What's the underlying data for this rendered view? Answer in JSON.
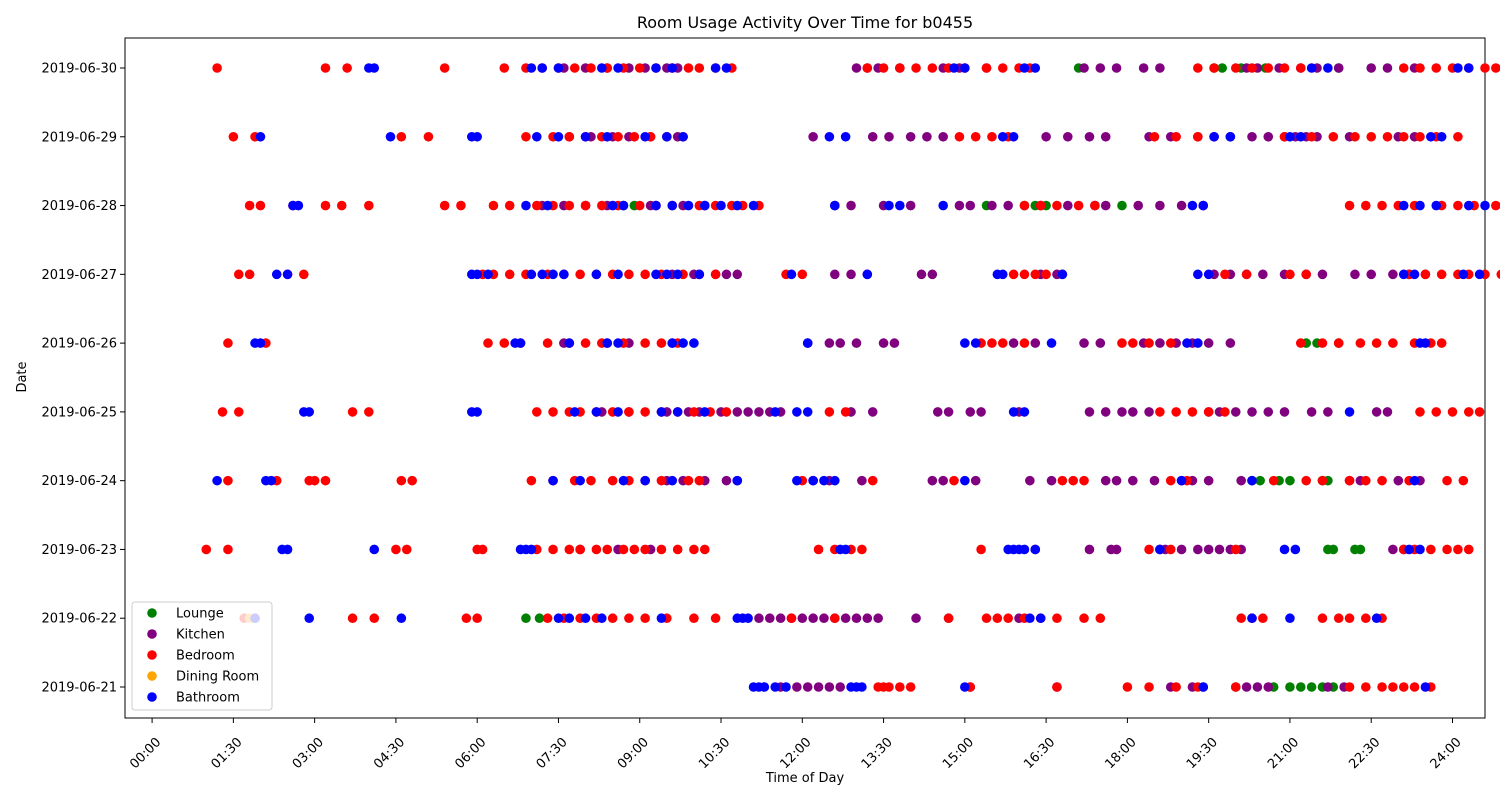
{
  "chart_data": {
    "type": "scatter",
    "title": "Room Usage Activity Over Time for b0455",
    "xlabel": "Time of Day",
    "ylabel": "Date",
    "xlim": [
      -0.5,
      24.6
    ],
    "x_ticks": [
      "00:00",
      "01:30",
      "03:00",
      "04:30",
      "06:00",
      "07:30",
      "09:00",
      "10:30",
      "12:00",
      "13:30",
      "15:00",
      "16:30",
      "18:00",
      "19:30",
      "21:00",
      "22:30",
      "24:00"
    ],
    "y_categories": [
      "2019-06-21",
      "2019-06-22",
      "2019-06-23",
      "2019-06-24",
      "2019-06-25",
      "2019-06-26",
      "2019-06-27",
      "2019-06-28",
      "2019-06-29",
      "2019-06-30"
    ],
    "legend_position": "lower-left",
    "grid": false,
    "series": [
      {
        "name": "Lounge",
        "color": "#008000",
        "points": {
          "2019-06-22": [
            6.9,
            7.15
          ],
          "2019-06-24": [
            20.3,
            20.45,
            20.8,
            21.0,
            21.6,
            21.7
          ],
          "2019-06-26": [
            21.3,
            21.5,
            21.9
          ],
          "2019-06-28": [
            8.7,
            8.9,
            15.4,
            16.1,
            16.3,
            16.5,
            17.9
          ],
          "2019-06-30": [
            17.1,
            19.6,
            19.75,
            20.1,
            20.55,
            21.9
          ],
          "2019-06-23": [
            21.7,
            21.8,
            22.2,
            22.3
          ],
          "2019-06-21": [
            20.7,
            21.0,
            21.2,
            21.4,
            21.6,
            21.8
          ]
        }
      },
      {
        "name": "Kitchen",
        "color": "#800080",
        "points": {
          "2019-06-21": [
            11.6,
            11.9,
            12.1,
            12.3,
            12.5,
            12.7,
            15.1,
            16.7,
            18.8,
            19.2,
            19.4,
            20.0,
            20.2,
            20.4,
            20.6,
            21.7,
            22.0
          ],
          "2019-06-22": [
            11.2,
            11.4,
            11.6,
            11.8,
            12.0,
            12.2,
            12.4,
            12.6,
            12.8,
            13.0,
            13.2,
            13.4,
            14.1,
            14.7,
            16.0
          ],
          "2019-06-23": [
            7.9,
            8.6,
            9.2,
            17.3,
            17.7,
            17.8,
            18.7,
            19.0,
            19.3,
            19.5,
            19.7,
            19.9,
            20.1,
            22.9,
            23.1
          ],
          "2019-06-24": [
            9.5,
            9.8,
            10.2,
            10.6,
            10.8,
            12.2,
            12.5,
            13.1,
            14.4,
            14.6,
            15.2,
            16.2,
            16.6,
            17.6,
            17.8,
            18.1,
            18.5,
            19.0,
            19.2,
            19.5,
            20.1,
            22.1,
            22.3,
            23.0,
            23.4
          ],
          "2019-06-25": [
            8.3,
            8.8,
            9.5,
            9.9,
            10.1,
            10.5,
            10.8,
            11.0,
            11.2,
            11.4,
            11.6,
            12.9,
            13.3,
            14.5,
            14.7,
            15.1,
            15.3,
            16.0,
            17.3,
            17.6,
            17.9,
            18.1,
            18.4,
            19.5,
            19.7,
            20.0,
            20.3,
            20.6,
            20.9,
            21.4,
            21.7,
            22.6,
            22.8
          ],
          "2019-06-26": [
            7.6,
            8.4,
            8.8,
            9.6,
            12.1,
            12.5,
            12.7,
            13.0,
            13.5,
            13.7,
            15.9,
            16.3,
            17.2,
            17.5,
            18.3,
            18.6,
            18.9,
            19.2,
            19.5,
            19.9
          ],
          "2019-06-27": [
            9.6,
            10.0,
            10.4,
            10.6,
            10.8,
            12.6,
            12.9,
            13.2,
            14.2,
            14.4,
            16.4,
            16.7,
            19.6,
            19.9,
            20.2,
            20.5,
            20.9,
            21.3,
            21.6,
            22.2,
            22.5,
            22.9,
            23.2,
            23.5
          ],
          "2019-06-28": [
            7.2,
            7.6,
            8.0,
            8.4,
            9.2,
            9.8,
            10.2,
            12.6,
            12.9,
            13.5,
            14.0,
            14.9,
            15.1,
            15.5,
            15.8,
            16.4,
            16.9,
            17.4,
            17.6,
            18.2,
            18.6,
            19.0,
            19.4
          ],
          "2019-06-29": [
            7.7,
            8.1,
            8.5,
            8.8,
            9.2,
            9.7,
            12.2,
            13.3,
            13.6,
            14.0,
            14.3,
            14.6,
            16.5,
            16.9,
            17.3,
            17.6,
            18.4,
            18.8,
            19.3,
            19.6,
            19.9,
            20.3,
            20.6,
            20.9,
            21.1,
            21.3,
            21.5,
            22.1,
            23.0,
            23.3
          ],
          "2019-06-30": [
            7.6,
            8.0,
            8.4,
            8.8,
            9.1,
            9.5,
            9.7,
            13.0,
            13.2,
            13.4,
            13.8,
            14.6,
            14.9,
            15.4,
            17.2,
            17.5,
            17.8,
            18.3,
            18.6,
            20.2,
            20.4,
            20.8,
            21.2,
            21.5,
            21.9,
            22.5,
            22.8,
            23.3
          ],
          "2019-06-22_b": []
        }
      },
      {
        "name": "Bedroom",
        "color": "#ff0000",
        "points": {
          "2019-06-21": [
            13.4,
            13.5,
            13.6,
            13.8,
            14.0,
            15.1,
            16.7,
            18.0,
            18.4,
            18.9,
            19.3,
            20.0,
            22.1,
            22.4,
            22.7,
            22.9,
            23.1,
            23.3,
            23.6
          ],
          "2019-06-22": [
            1.7,
            3.7,
            4.1,
            5.8,
            6.0,
            7.3,
            7.6,
            7.9,
            8.2,
            8.5,
            8.8,
            9.1,
            9.5,
            10.0,
            10.4,
            11.8,
            12.6,
            14.7,
            15.4,
            15.6,
            15.8,
            16.1,
            16.4,
            16.7,
            17.2,
            17.5,
            20.1,
            20.3,
            20.5,
            21.6,
            21.9,
            22.1,
            22.4,
            22.7
          ],
          "2019-06-23": [
            1.0,
            1.4,
            4.5,
            4.7,
            6.0,
            6.1,
            7.1,
            7.4,
            7.7,
            7.9,
            8.2,
            8.4,
            8.7,
            8.9,
            9.1,
            9.4,
            9.7,
            10.0,
            10.2,
            12.3,
            12.6,
            12.9,
            13.1,
            15.3,
            16.3,
            18.4,
            18.6,
            18.8,
            20.0,
            23.1,
            23.3,
            23.6,
            23.9,
            24.1,
            24.3
          ],
          "2019-06-24": [
            1.4,
            2.3,
            2.9,
            3.0,
            3.2,
            4.6,
            4.8,
            7.0,
            7.4,
            7.8,
            8.1,
            8.5,
            8.8,
            9.1,
            9.4,
            9.9,
            10.1,
            12.0,
            13.3,
            14.8,
            16.8,
            17.0,
            17.2,
            18.8,
            19.1,
            20.7,
            21.3,
            21.6,
            22.1,
            22.4,
            22.7,
            23.2,
            23.9,
            24.2
          ],
          "2019-06-25": [
            1.3,
            1.6,
            3.7,
            4.0,
            7.1,
            7.4,
            7.7,
            7.9,
            8.2,
            8.5,
            8.8,
            9.1,
            9.4,
            9.7,
            10.0,
            10.3,
            10.6,
            12.5,
            12.8,
            18.6,
            18.9,
            19.2,
            19.5,
            19.8,
            23.4,
            23.7,
            24.0,
            24.3,
            24.5
          ],
          "2019-06-26": [
            1.4,
            2.1,
            6.2,
            6.5,
            6.8,
            7.3,
            7.7,
            8.0,
            8.3,
            8.7,
            9.1,
            9.4,
            9.7,
            15.3,
            15.5,
            15.7,
            16.1,
            17.9,
            18.1,
            18.4,
            18.8,
            21.2,
            21.6,
            21.9,
            22.3,
            22.6,
            22.9,
            23.3,
            23.6,
            23.8
          ],
          "2019-06-27": [
            1.6,
            1.8,
            2.5,
            2.8,
            6.1,
            6.3,
            6.6,
            6.9,
            7.3,
            7.6,
            7.9,
            8.2,
            8.5,
            8.8,
            9.1,
            9.4,
            9.8,
            10.1,
            10.4,
            11.7,
            12.0,
            15.9,
            16.1,
            16.3,
            16.5,
            16.8,
            19.8,
            20.2,
            21.0,
            21.3,
            23.2,
            23.5,
            23.8,
            24.1,
            24.3,
            24.6,
            24.9
          ],
          "2019-06-28": [
            1.8,
            2.0,
            2.6,
            3.2,
            3.5,
            4.0,
            5.4,
            5.7,
            6.3,
            6.6,
            7.1,
            7.4,
            7.7,
            8.0,
            8.3,
            8.6,
            9.0,
            9.3,
            9.6,
            10.1,
            10.4,
            10.7,
            10.9,
            11.2,
            16.1,
            16.4,
            16.7,
            17.1,
            17.4,
            22.1,
            22.4,
            22.7,
            23.0,
            23.3,
            23.8,
            24.1,
            24.4,
            24.8
          ],
          "2019-06-29": [
            1.5,
            1.9,
            4.6,
            5.1,
            6.9,
            7.4,
            7.7,
            8.0,
            8.3,
            8.6,
            8.9,
            9.2,
            9.5,
            9.8,
            14.9,
            15.2,
            15.5,
            15.8,
            18.5,
            18.9,
            19.3,
            20.9,
            21.4,
            21.8,
            22.2,
            22.5,
            22.8,
            23.1,
            23.4,
            23.7,
            24.1
          ],
          "2019-06-30": [
            1.2,
            3.2,
            3.6,
            5.4,
            6.5,
            6.9,
            7.2,
            7.5,
            7.8,
            8.1,
            8.4,
            8.7,
            9.0,
            9.3,
            9.6,
            9.9,
            10.1,
            10.4,
            10.7,
            13.2,
            13.5,
            13.8,
            14.1,
            14.4,
            14.7,
            15.0,
            15.4,
            15.7,
            16.0,
            16.2,
            19.3,
            19.6,
            20.0,
            20.3,
            20.6,
            20.9,
            21.2,
            23.1,
            23.4,
            23.7,
            24.0,
            24.3,
            24.6,
            24.8
          ]
        }
      },
      {
        "name": "Dining Room",
        "color": "#ffa500",
        "points": {
          "2019-06-22": [
            1.8,
            1.9
          ]
        }
      },
      {
        "name": "Bathroom",
        "color": "#0000ff",
        "points": {
          "2019-06-21": [
            11.1,
            11.2,
            11.3,
            11.5,
            11.7,
            12.9,
            13.0,
            13.1,
            15.0,
            19.4,
            23.5
          ],
          "2019-06-22": [
            1.9,
            2.9,
            4.6,
            7.5,
            7.7,
            8.0,
            8.3,
            9.4,
            10.8,
            10.9,
            11.0,
            16.2,
            16.4,
            20.3,
            21.0,
            22.6
          ],
          "2019-06-23": [
            2.4,
            2.5,
            4.1,
            6.8,
            6.9,
            7.0,
            12.7,
            12.8,
            15.8,
            15.9,
            16.0,
            16.1,
            16.3,
            18.6,
            20.9,
            21.1,
            23.2,
            23.4
          ],
          "2019-06-24": [
            1.2,
            2.1,
            2.2,
            7.4,
            7.9,
            8.7,
            9.1,
            9.6,
            10.8,
            11.9,
            12.2,
            12.4,
            12.6,
            15.0,
            19.0,
            20.3,
            23.3
          ],
          "2019-06-25": [
            2.8,
            2.9,
            5.9,
            6.0,
            7.8,
            8.2,
            8.6,
            9.4,
            9.7,
            10.2,
            11.5,
            11.9,
            12.1,
            15.9,
            16.1,
            22.1
          ],
          "2019-06-26": [
            1.9,
            2.0,
            6.7,
            6.8,
            7.7,
            8.4,
            8.6,
            9.6,
            9.8,
            10.0,
            12.1,
            15.0,
            15.2,
            16.6,
            19.1,
            19.3,
            23.4,
            23.5
          ],
          "2019-06-27": [
            2.3,
            2.5,
            5.9,
            6.0,
            6.2,
            7.0,
            7.2,
            7.4,
            7.6,
            8.2,
            8.6,
            9.3,
            9.5,
            9.7,
            10.1,
            11.8,
            13.2,
            15.6,
            15.7,
            16.8,
            19.3,
            19.5,
            23.1,
            23.3,
            24.2,
            24.5
          ],
          "2019-06-28": [
            2.6,
            2.7,
            6.9,
            7.3,
            8.5,
            8.7,
            9.3,
            9.6,
            9.9,
            10.2,
            10.5,
            10.8,
            11.1,
            12.6,
            13.6,
            13.8,
            14.6,
            19.2,
            19.4,
            23.1,
            23.4,
            23.7,
            24.3,
            24.6
          ],
          "2019-06-29": [
            2.0,
            4.4,
            5.9,
            6.0,
            7.1,
            7.5,
            8.0,
            8.4,
            9.1,
            9.5,
            9.8,
            12.5,
            12.8,
            15.7,
            15.9,
            19.6,
            19.9,
            21.0,
            21.2,
            23.6,
            23.8
          ],
          "2019-06-30": [
            4.0,
            4.1,
            7.0,
            7.2,
            7.5,
            8.3,
            8.6,
            9.3,
            9.6,
            10.4,
            10.6,
            14.8,
            15.0,
            16.1,
            16.3,
            21.4,
            21.7,
            24.1,
            24.3
          ]
        }
      }
    ]
  }
}
